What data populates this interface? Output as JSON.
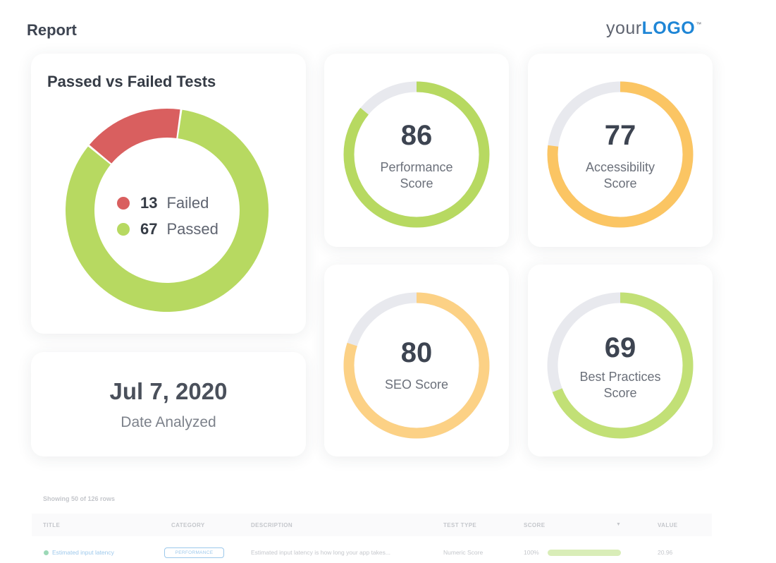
{
  "header": {
    "title": "Report"
  },
  "logo": {
    "part1": "your",
    "part2": "LOGO",
    "tm": "™"
  },
  "tests_card": {
    "title": "Passed vs Failed Tests",
    "failed": {
      "count": "13",
      "label": "Failed",
      "value": 13,
      "color": "#d95f5f"
    },
    "passed": {
      "count": "67",
      "label": "Passed",
      "value": 67,
      "color": "#b7d961"
    }
  },
  "date_card": {
    "value": "Jul 7, 2020",
    "label": "Date Analyzed"
  },
  "gauges": {
    "performance": {
      "score": "86",
      "value": 86,
      "label": "Performance Score",
      "color": "#b7d961"
    },
    "accessibility": {
      "score": "77",
      "value": 77,
      "label": "Accessibility Score",
      "color": "#fbc563"
    },
    "seo": {
      "score": "80",
      "value": 80,
      "label": "SEO Score",
      "color": "#fcd185"
    },
    "best_practices": {
      "score": "69",
      "value": 69,
      "label": "Best Practices Score",
      "color": "#c2e076"
    }
  },
  "track_color": "#e8e9ee",
  "table": {
    "rows_info": "Showing 50 of 126 rows",
    "headers": {
      "title": "TITLE",
      "category": "CATEGORY",
      "description": "DESCRIPTION",
      "test_type": "TEST TYPE",
      "score": "SCORE",
      "value": "VALUE"
    },
    "rows": [
      {
        "title": "Estimated input latency",
        "category": "PERFORMANCE",
        "description": "Estimated input latency is how long your app takes...",
        "test_type": "Numeric Score",
        "score": "100%",
        "score_value": 100,
        "value": "20.96"
      }
    ]
  }
}
